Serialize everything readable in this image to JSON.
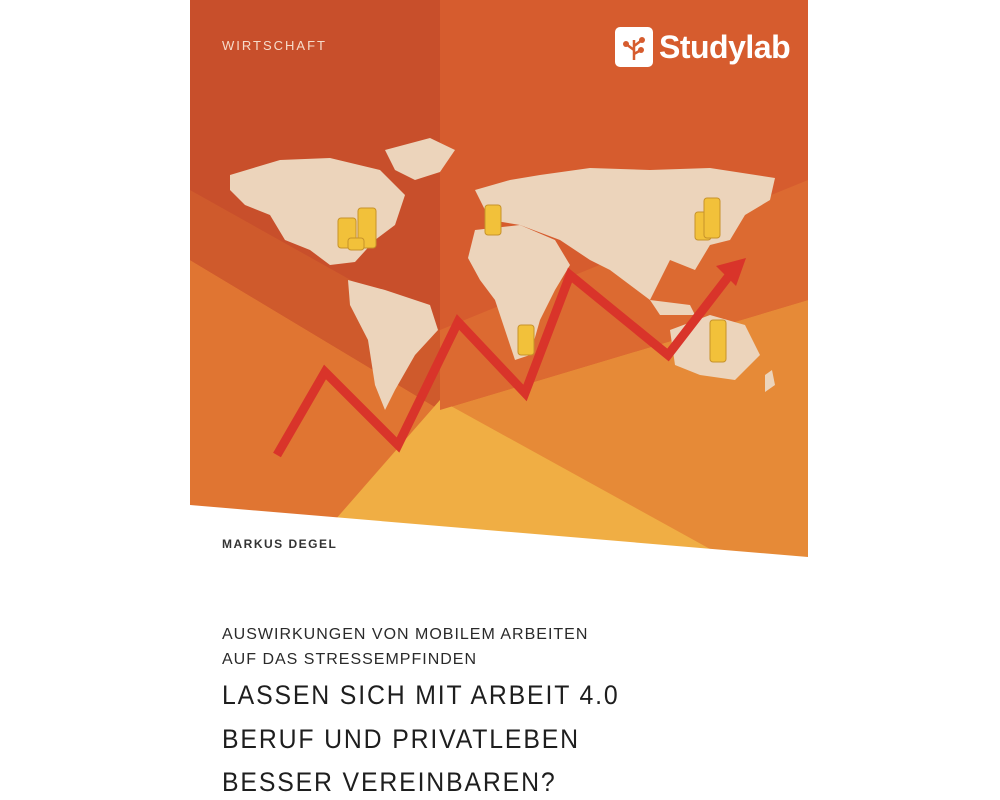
{
  "cover": {
    "category": "WIRTSCHAFT",
    "publisher_logo": "Studylab",
    "author": "MARKUS DEGEL",
    "subtitle_lines": [
      "AUSWIRKUNGEN VON MOBILEM ARBEITEN",
      "AUF DAS STRESSEMPFINDEN"
    ],
    "title_lines": [
      "LASSEN SICH MIT ARBEIT 4.0",
      "BERUF UND PRIVATLEBEN",
      "BESSER VEREINBAREN?"
    ],
    "colors": {
      "orange_dark": "#c84f2b",
      "orange": "#d65c2e",
      "orange_light": "#e4813a",
      "yellow": "#f0ae44",
      "map": "#ecd4bb",
      "arrow": "#d9342a",
      "coins": "#f2c13a"
    },
    "illustration": {
      "map": "world-map",
      "trend": "zigzag-rising-arrow",
      "coins": "coin-stacks"
    }
  }
}
